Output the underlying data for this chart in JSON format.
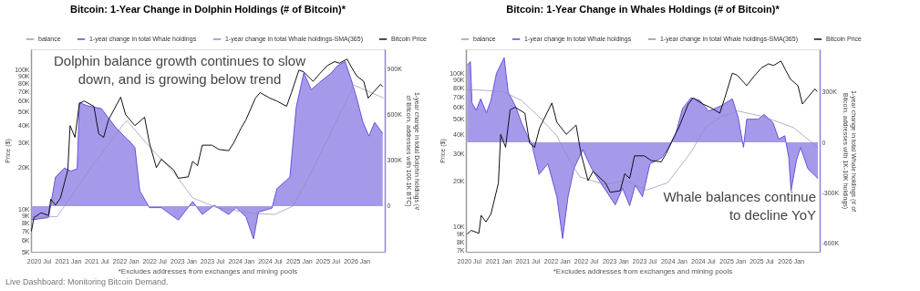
{
  "chart_data": [
    {
      "type": "line",
      "title": "Bitcoin: 1-Year Change in Dolphin Holdings (# of Bitcoin)*",
      "ylabel": "Price ($)",
      "y2label": "1-year change in total Dolphin holdings (# of Bitcoin, addresses with 100-1K BTC)",
      "annotations": [
        "Dolphin balance growth continues to slow down, and is growing below trend",
        "*Excludes addresses from exchanges and mining pools",
        "Live Dashboard: Monitoring Bitcoin Demand."
      ],
      "legend": "top",
      "log": "y",
      "grid": false,
      "xlim": [
        "2020-05-13",
        "2026-06-28"
      ],
      "xticks": [
        {
          "value": "2020-07-01",
          "label": "2020 Jul"
        },
        {
          "value": "2021-01-01",
          "label": "2021 Jan"
        },
        {
          "value": "2021-07-01",
          "label": "2021 Jul"
        },
        {
          "value": "2022-01-01",
          "label": "2022 Jan"
        },
        {
          "value": "2022-07-01",
          "label": "2022 Jul"
        },
        {
          "value": "2023-01-01",
          "label": "2023 Jan"
        },
        {
          "value": "2023-07-01",
          "label": "2023 Jul"
        },
        {
          "value": "2024-01-01",
          "label": "2024 Jan"
        },
        {
          "value": "2024-07-01",
          "label": "2024 Jul"
        },
        {
          "value": "2025-01-01",
          "label": "2025 Jan"
        },
        {
          "value": "2025-07-01",
          "label": "2025 Jul"
        },
        {
          "value": "2026-01-01",
          "label": "2026 Jan"
        }
      ],
      "ylim": [
        5000,
        141000
      ],
      "yticks": [
        {
          "value": 5000,
          "label": "5K"
        },
        {
          "value": 6000,
          "label": "6K"
        },
        {
          "value": 7000,
          "label": "7K"
        },
        {
          "value": 8000,
          "label": "8K"
        },
        {
          "value": 9000,
          "label": "9K"
        },
        {
          "value": 10000,
          "label": "10K"
        },
        {
          "value": 20000,
          "label": "20K"
        },
        {
          "value": 30000,
          "label": "30K"
        },
        {
          "value": 40000,
          "label": "40K"
        },
        {
          "value": 50000,
          "label": "50K"
        },
        {
          "value": 60000,
          "label": "60K"
        },
        {
          "value": 70000,
          "label": "70K"
        },
        {
          "value": 80000,
          "label": "80K"
        },
        {
          "value": 90000,
          "label": "90K"
        },
        {
          "value": 100000,
          "label": "100K"
        }
      ],
      "y2lim": [
        -300000,
        1030000
      ],
      "y2ticks": [
        {
          "value": 0,
          "label": "0"
        },
        {
          "value": 300000,
          "label": "300K"
        },
        {
          "value": 600000,
          "label": "600K"
        },
        {
          "value": 900000,
          "label": "900K"
        }
      ],
      "series": [
        {
          "name": "balance",
          "axis": "y2",
          "color": "#9e9e9e"
        },
        {
          "name": "1-year change in total Whale holdings",
          "type": "area",
          "axis": "y2",
          "color": "#5b47d9",
          "x": [
            "2020-05-20",
            "2020-09-01",
            "2020-10-15",
            "2020-12-10",
            "2021-01-20",
            "2021-03-01",
            "2021-03-15",
            "2021-05-01",
            "2021-08-01",
            "2021-11-01",
            "2022-01-10",
            "2022-02-01",
            "2022-03-01",
            "2022-04-01",
            "2022-06-01",
            "2022-08-15",
            "2022-12-01",
            "2023-03-01",
            "2023-05-01",
            "2023-07-15",
            "2023-10-15",
            "2023-12-01",
            "2024-02-01",
            "2024-03-20",
            "2024-04-20",
            "2024-07-15",
            "2024-08-15",
            "2024-11-05",
            "2024-12-15",
            "2025-02-01",
            "2025-03-20",
            "2025-05-20",
            "2025-07-20",
            "2025-09-01",
            "2025-10-20",
            "2025-12-01",
            "2026-01-05",
            "2026-02-10",
            "2026-03-20",
            "2026-04-25",
            "2026-06-15"
          ],
          "values": [
            -90000,
            -75000,
            190000,
            250000,
            230000,
            245000,
            680000,
            660000,
            640000,
            515000,
            440000,
            420000,
            385000,
            100000,
            -10000,
            -10000,
            -92000,
            30000,
            -55000,
            5000,
            -55000,
            -10000,
            -70000,
            -215000,
            -40000,
            -13000,
            115000,
            190000,
            650000,
            875000,
            765000,
            820000,
            870000,
            920000,
            950000,
            820000,
            695000,
            550000,
            460000,
            550000,
            477000
          ]
        },
        {
          "name": "1-year change in total Whale holdings-SMA(365)",
          "axis": "y2",
          "color": "#8f8cb8",
          "x": [
            "2020-05-20",
            "2020-10-25",
            "2021-04-25",
            "2021-12-20",
            "2022-01-10",
            "2022-06-05",
            "2022-11-01",
            "2023-03-01",
            "2023-08-01",
            "2024-04-01",
            "2024-08-01",
            "2024-11-25",
            "2025-04-01",
            "2025-12-15",
            "2026-06-20"
          ],
          "values": [
            -70000,
            -70000,
            205000,
            540000,
            560000,
            385000,
            222000,
            54000,
            -10000,
            -50000,
            -55000,
            0,
            245000,
            795000,
            710000
          ]
        },
        {
          "name": "Bitcoin Price",
          "axis": "y",
          "color": "#111111",
          "x": [
            "2020-05-15",
            "2020-06-01",
            "2020-07-15",
            "2020-09-01",
            "2020-09-15",
            "2020-10-15",
            "2020-11-15",
            "2021-01-01",
            "2021-01-15",
            "2021-02-15",
            "2021-03-15",
            "2021-04-15",
            "2021-06-15",
            "2021-07-15",
            "2021-08-15",
            "2021-09-15",
            "2021-12-01",
            "2022-01-01",
            "2022-03-01",
            "2022-05-01",
            "2022-06-01",
            "2022-07-15",
            "2022-08-15",
            "2022-11-01",
            "2022-12-01",
            "2023-02-01",
            "2023-03-01",
            "2023-04-01",
            "2023-05-01",
            "2023-07-01",
            "2023-08-15",
            "2023-10-15",
            "2023-11-15",
            "2024-01-01",
            "2024-02-01",
            "2024-04-01",
            "2024-05-01",
            "2024-07-01",
            "2024-08-15",
            "2024-10-15",
            "2024-11-15",
            "2025-01-01",
            "2025-02-01",
            "2025-04-01",
            "2025-05-15",
            "2025-07-01",
            "2025-08-15",
            "2025-09-15",
            "2025-11-01",
            "2025-12-01",
            "2026-01-01",
            "2026-02-15",
            "2026-03-15",
            "2026-04-15",
            "2026-06-01",
            "2026-06-15"
          ],
          "values": [
            7000,
            8800,
            9500,
            9100,
            11900,
            10800,
            12100,
            19300,
            40000,
            33000,
            57800,
            60000,
            55000,
            35000,
            33000,
            44000,
            64000,
            48000,
            40000,
            46000,
            30000,
            20000,
            23000,
            19300,
            16800,
            17200,
            22200,
            20700,
            29000,
            29000,
            27000,
            26500,
            30000,
            38400,
            44000,
            63000,
            69000,
            63000,
            60000,
            55000,
            69000,
            100000,
            97000,
            83000,
            95000,
            108000,
            115000,
            112000,
            120000,
            104000,
            91000,
            83000,
            63000,
            69000,
            79000,
            76000
          ]
        }
      ]
    },
    {
      "type": "line",
      "title": "Bitcoin: 1-Year Change in Whales Holdings (# of Bitcoin)*",
      "ylabel": "Price ($)",
      "y2label": "1-year change in total Whale holdings (# of Bitcoin, addresses with 1K-10K holdings)",
      "annotations": [
        "Whale balances continue to decline YoY",
        "*Excludes addresses from exchanges and mining pools"
      ],
      "legend": "top",
      "log": "y",
      "grid": false,
      "xlim": [
        "2020-06-12",
        "2026-07-01"
      ],
      "xticks": [
        {
          "value": "2020-07-01",
          "label": "2020 Jul"
        },
        {
          "value": "2021-01-01",
          "label": "2021 Jan"
        },
        {
          "value": "2021-07-01",
          "label": "2021 Jul"
        },
        {
          "value": "2022-01-01",
          "label": "2022 Jan"
        },
        {
          "value": "2022-07-01",
          "label": "2022 Jul"
        },
        {
          "value": "2023-01-01",
          "label": "2023 Jan"
        },
        {
          "value": "2023-07-01",
          "label": "2023 Jul"
        },
        {
          "value": "2024-01-01",
          "label": "2024 Jan"
        },
        {
          "value": "2024-07-01",
          "label": "2024 Jul"
        },
        {
          "value": "2025-01-01",
          "label": "2025 Jan"
        },
        {
          "value": "2025-07-01",
          "label": "2025 Jul"
        },
        {
          "value": "2026-01-01",
          "label": "2026 Jan"
        }
      ],
      "ylim": [
        6900,
        143000
      ],
      "yticks": [
        {
          "value": 7000,
          "label": "7K"
        },
        {
          "value": 8000,
          "label": "8K"
        },
        {
          "value": 9000,
          "label": "9K"
        },
        {
          "value": 10000,
          "label": "10K"
        },
        {
          "value": 20000,
          "label": "20K"
        },
        {
          "value": 30000,
          "label": "30K"
        },
        {
          "value": 40000,
          "label": "40K"
        },
        {
          "value": 50000,
          "label": "50K"
        },
        {
          "value": 60000,
          "label": "60K"
        },
        {
          "value": 70000,
          "label": "70K"
        },
        {
          "value": 80000,
          "label": "80K"
        },
        {
          "value": 90000,
          "label": "90K"
        },
        {
          "value": 100000,
          "label": "100K"
        }
      ],
      "y2lim": [
        -654000,
        556000
      ],
      "y2ticks": [
        {
          "value": -600000,
          "label": "-600K"
        },
        {
          "value": -300000,
          "label": "-300K"
        },
        {
          "value": 0,
          "label": "0"
        },
        {
          "value": 300000,
          "label": "300K"
        }
      ],
      "series": [
        {
          "name": "balance",
          "axis": "y2",
          "color": "#9e9e9e"
        },
        {
          "name": "1-year change in total Whale holdings",
          "type": "area",
          "axis": "y2",
          "color": "#5b47d9",
          "x": [
            "2020-06-20",
            "2020-07-10",
            "2020-07-20",
            "2020-08-15",
            "2020-09-12",
            "2020-10-18",
            "2020-11-15",
            "2020-12-20",
            "2021-02-06",
            "2021-03-03",
            "2021-04-18",
            "2021-05-25",
            "2021-07-01",
            "2021-07-28",
            "2021-09-12",
            "2021-11-06",
            "2022-01-01",
            "2022-02-06",
            "2022-03-12",
            "2022-04-18",
            "2022-06-12",
            "2022-08-06",
            "2022-10-01",
            "2023-01-01",
            "2023-02-15",
            "2023-04-01",
            "2023-05-06",
            "2023-06-20",
            "2023-08-06",
            "2023-10-18",
            "2023-12-03",
            "2024-01-10",
            "2024-02-25",
            "2024-04-18",
            "2024-06-12",
            "2024-08-06",
            "2024-10-18",
            "2025-01-01",
            "2025-02-06",
            "2025-03-12",
            "2025-04-01",
            "2025-06-12",
            "2025-07-18",
            "2025-09-12",
            "2025-10-18",
            "2025-11-25",
            "2025-12-20",
            "2026-01-03",
            "2026-02-06",
            "2026-03-03",
            "2026-04-18",
            "2026-06-20"
          ],
          "values": [
            462000,
            482000,
            236000,
            192000,
            260000,
            177000,
            250000,
            413000,
            506000,
            300000,
            216000,
            118000,
            39000,
            -10000,
            -192000,
            -128000,
            -325000,
            -575000,
            -325000,
            -157000,
            -44000,
            -157000,
            -241000,
            -374000,
            -275000,
            -379000,
            -256000,
            -325000,
            -128000,
            -93000,
            -30000,
            39000,
            202000,
            266000,
            250000,
            187000,
            216000,
            260000,
            152000,
            -30000,
            138000,
            138000,
            167000,
            118000,
            20000,
            39000,
            -93000,
            -290000,
            -108000,
            -30000,
            -157000,
            -216000
          ]
        },
        {
          "name": "1-year change in total Whale holdings-SMA(365)",
          "axis": "y2",
          "color": "#8f8cb8",
          "x": [
            "2020-06-20",
            "2020-10-18",
            "2021-02-06",
            "2021-05-25",
            "2021-09-12",
            "2022-01-01",
            "2022-03-12",
            "2022-05-25",
            "2022-10-18",
            "2023-03-12",
            "2023-07-18",
            "2023-11-25",
            "2024-04-18",
            "2024-07-18",
            "2024-10-18",
            "2025-02-06",
            "2025-07-18",
            "2026-01-18",
            "2026-06-20"
          ],
          "values": [
            315000,
            310000,
            300000,
            250000,
            152000,
            39000,
            -93000,
            -207000,
            -250000,
            -231000,
            -285000,
            -241000,
            -59000,
            88000,
            152000,
            187000,
            152000,
            88000,
            -30000
          ]
        },
        {
          "name": "Bitcoin Price",
          "axis": "y",
          "color": "#111111",
          "x": [
            "2020-06-20",
            "2020-07-15",
            "2020-09-01",
            "2020-09-15",
            "2020-10-15",
            "2020-11-15",
            "2021-01-01",
            "2021-01-15",
            "2021-02-15",
            "2021-03-15",
            "2021-04-15",
            "2021-06-15",
            "2021-07-15",
            "2021-08-15",
            "2021-09-15",
            "2021-12-01",
            "2022-01-01",
            "2022-03-01",
            "2022-05-01",
            "2022-06-01",
            "2022-07-15",
            "2022-08-15",
            "2022-11-01",
            "2022-12-01",
            "2023-02-01",
            "2023-03-01",
            "2023-04-01",
            "2023-05-01",
            "2023-07-01",
            "2023-08-15",
            "2023-10-15",
            "2023-11-15",
            "2024-01-01",
            "2024-02-01",
            "2024-04-01",
            "2024-05-01",
            "2024-07-01",
            "2024-08-15",
            "2024-10-15",
            "2024-11-15",
            "2025-01-01",
            "2025-02-01",
            "2025-04-01",
            "2025-05-15",
            "2025-07-01",
            "2025-08-15",
            "2025-09-15",
            "2025-11-01",
            "2025-12-01",
            "2026-01-01",
            "2026-02-15",
            "2026-03-15",
            "2026-04-15",
            "2026-06-01",
            "2026-06-15"
          ],
          "values": [
            9000,
            9500,
            9100,
            11900,
            10800,
            12100,
            19300,
            40000,
            33000,
            57800,
            60000,
            55000,
            35000,
            33000,
            44000,
            64000,
            48000,
            40000,
            46000,
            30000,
            20000,
            23000,
            19300,
            16800,
            17200,
            22200,
            20700,
            29000,
            29000,
            27000,
            26500,
            30000,
            38400,
            44000,
            63000,
            69000,
            63000,
            60000,
            55000,
            69000,
            100000,
            97000,
            83000,
            95000,
            108000,
            115000,
            112000,
            120000,
            104000,
            91000,
            83000,
            63000,
            69000,
            79000,
            76000
          ]
        }
      ]
    }
  ]
}
